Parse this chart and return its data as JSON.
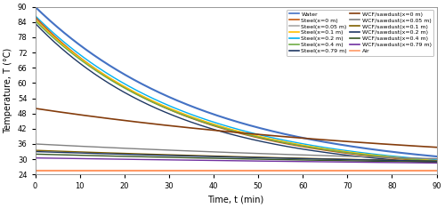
{
  "title": "",
  "xlabel": "Time, t (min)",
  "ylabel": "Temperature, T (°C)",
  "xlim": [
    0,
    90
  ],
  "ylim": [
    24,
    90
  ],
  "yticks": [
    24,
    30,
    36,
    42,
    48,
    54,
    60,
    66,
    72,
    78,
    84,
    90
  ],
  "xticks": [
    0,
    10,
    20,
    30,
    40,
    50,
    60,
    70,
    80,
    90
  ],
  "legend_order": [
    "Water",
    "Steel(x=0 m)",
    "Steel(x=0.05 m)",
    "Steel(x=0.1 m)",
    "Steel(x=0.2 m)",
    "Steel(x=0.4 m)",
    "Steel(x=0.79 m)",
    "WCF/sawdust(x=0 m)",
    "WCF/sawdust(x=0.05 m)",
    "WCF/sawdust(x=0.1 m)",
    "WCF/sawdust(x=0.2 m)",
    "WCF/sawdust(x=0.4 m)",
    "WCF/sawdust(x=0.79 m)",
    "Air"
  ],
  "series": [
    {
      "label": "Water",
      "color": "#4472C4",
      "t_start": 90.0,
      "t_end": 25.0,
      "tau": 38.0,
      "lw": 1.5
    },
    {
      "label": "Steel(x=0.05 m)",
      "color": "#A9A9A9",
      "t_start": 85.5,
      "t_end": 25.0,
      "tau": 34.0,
      "lw": 1.0
    },
    {
      "label": "Steel(x=0.2 m)",
      "color": "#00B0F0",
      "t_start": 86.5,
      "t_end": 25.0,
      "tau": 35.0,
      "lw": 1.0
    },
    {
      "label": "Steel(x=0.79 m)",
      "color": "#1F3864",
      "t_start": 83.5,
      "t_end": 25.0,
      "tau": 32.0,
      "lw": 1.0
    },
    {
      "label": "Steel(x=0 m)",
      "color": "#C55A11",
      "t_start": 86.0,
      "t_end": 25.0,
      "tau": 33.0,
      "lw": 1.0
    },
    {
      "label": "Steel(x=0.1 m)",
      "color": "#FFC000",
      "t_start": 85.0,
      "t_end": 25.0,
      "tau": 34.5,
      "lw": 1.0
    },
    {
      "label": "Steel(x=0.4 m)",
      "color": "#70AD47",
      "t_start": 84.5,
      "t_end": 25.0,
      "tau": 34.0,
      "lw": 1.0
    },
    {
      "label": "WCF/sawdust(x=0 m)",
      "color": "#843C0C",
      "t_start": 50.0,
      "t_end": 25.0,
      "tau": 95.0,
      "lw": 1.2
    },
    {
      "label": "WCF/sawdust(x=0.05 m)",
      "color": "#808080",
      "t_start": 36.0,
      "t_end": 25.0,
      "tau": 120.0,
      "lw": 1.0
    },
    {
      "label": "WCF/sawdust(x=0.1 m)",
      "color": "#7F6000",
      "t_start": 33.5,
      "t_end": 25.0,
      "tau": 130.0,
      "lw": 1.0
    },
    {
      "label": "WCF/sawdust(x=0.2 m)",
      "color": "#203864",
      "t_start": 33.0,
      "t_end": 25.0,
      "tau": 140.0,
      "lw": 1.0
    },
    {
      "label": "WCF/sawdust(x=0.4 m)",
      "color": "#375623",
      "t_start": 32.0,
      "t_end": 25.0,
      "tau": 150.0,
      "lw": 1.0
    },
    {
      "label": "WCF/sawdust(x=0.79 m)",
      "color": "#7030A0",
      "t_start": 30.5,
      "t_end": 25.0,
      "tau": 200.0,
      "lw": 1.0
    },
    {
      "label": "Air",
      "color": "#FF9966",
      "t_start": 25.5,
      "t_end": 25.5,
      "tau": 9999.0,
      "lw": 1.5
    }
  ]
}
